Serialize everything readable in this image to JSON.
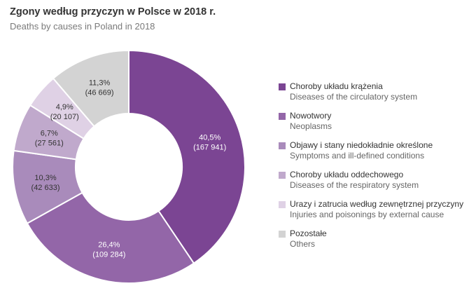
{
  "header": {
    "title": "Zgony według przyczyn w Polsce w 2018 r.",
    "subtitle": "Deaths by causes in Poland in 2018"
  },
  "chart_data": {
    "type": "pie",
    "title": "Zgony według przyczyn w Polsce w 2018 r.",
    "subtitle": "Deaths by causes in Poland in 2018",
    "donut": true,
    "legend_position": "right",
    "slices": [
      {
        "label_pl": "Choroby układu krążenia",
        "label_en": "Diseases of the circulatory system",
        "percent": 40.5,
        "percent_label": "40,5%",
        "value": 167941,
        "value_label": "(167 941)",
        "color": "#7b4593",
        "label_color": "#ffffff"
      },
      {
        "label_pl": "Nowotwory",
        "label_en": "Neoplasms",
        "percent": 26.4,
        "percent_label": "26,4%",
        "value": 109284,
        "value_label": "(109 284)",
        "color": "#9366a8",
        "label_color": "#ffffff"
      },
      {
        "label_pl": "Objawy i stany niedokładnie określone",
        "label_en": "Symptoms and ill-defined conditions",
        "percent": 10.3,
        "percent_label": "10,3%",
        "value": 42633,
        "value_label": "(42 633)",
        "color": "#a98bbb",
        "label_color": "#333333"
      },
      {
        "label_pl": "Choroby układu oddechowego",
        "label_en": "Diseases of the respiratory system",
        "percent": 6.7,
        "percent_label": "6,7%",
        "value": 27561,
        "value_label": "(27 561)",
        "color": "#c0a9cc",
        "label_color": "#333333"
      },
      {
        "label_pl": "Urazy i zatrucia według zewnętrznej przyczyny",
        "label_en": "Injuries and poisonings by external cause",
        "percent": 4.9,
        "percent_label": "4,9%",
        "value": 20107,
        "value_label": "(20 107)",
        "color": "#dfd1e5",
        "label_color": "#333333"
      },
      {
        "label_pl": "Pozostałe",
        "label_en": "Others",
        "percent": 11.3,
        "percent_label": "11,3%",
        "value": 46669,
        "value_label": "(46 669)",
        "color": "#d3d3d3",
        "label_color": "#333333"
      }
    ]
  }
}
